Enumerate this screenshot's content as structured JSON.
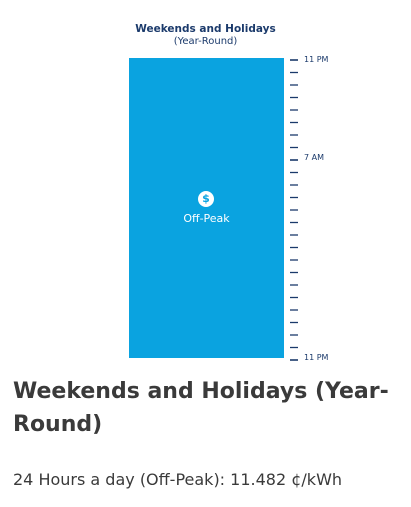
{
  "graphic": {
    "title": "Weekends and Holidays",
    "subtitle": "(Year-Round)",
    "period_label": "Off-Peak",
    "icon": "dollar-icon",
    "colors": {
      "bar": "#0aa3e0",
      "title": "#1b3a6b",
      "text": "#3a3a3a"
    },
    "time_labels": {
      "top": "11 PM",
      "middle": "7 AM",
      "bottom": "11 PM"
    }
  },
  "section": {
    "heading": "Weekends and Holidays (Year-Round)",
    "rate_text": "24 Hours a day (Off-Peak): 11.482 ¢/kWh"
  }
}
